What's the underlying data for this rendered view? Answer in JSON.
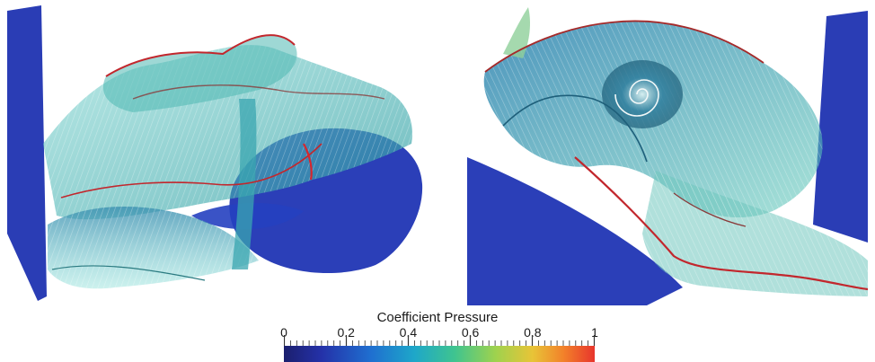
{
  "legend": {
    "title": "Coefficient Pressure",
    "ticks": [
      {
        "label": "0",
        "value": 0
      },
      {
        "label": "0.2",
        "value": 0.2
      },
      {
        "label": "0.4",
        "value": 0.4
      },
      {
        "label": "0.6",
        "value": 0.6
      },
      {
        "label": "0.8",
        "value": 0.8
      },
      {
        "label": "1",
        "value": 1
      }
    ],
    "range": [
      0,
      1
    ]
  },
  "colors": {
    "low": "#1b1f6e",
    "mid_low": "#1f6fd0",
    "mid": "#3fc48f",
    "mid_high": "#e8c437",
    "high": "#e8352c",
    "surface_body": "#2b3fb8",
    "vortex_sheet": "#3fb6b0",
    "vortex_edge": "#c2272d"
  }
}
